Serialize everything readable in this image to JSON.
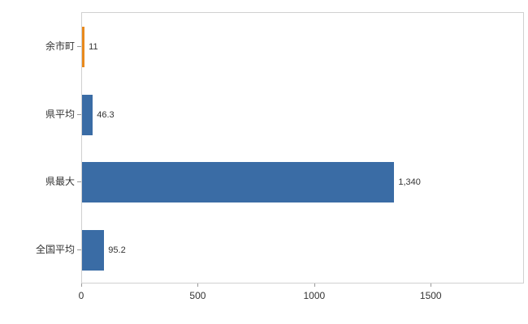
{
  "chart_data": {
    "type": "bar",
    "orientation": "horizontal",
    "title": "",
    "xlabel": "",
    "ylabel": "",
    "categories": [
      "余市町",
      "県平均",
      "県最大",
      "全国平均"
    ],
    "values": [
      11,
      46.3,
      1340,
      95.2
    ],
    "value_labels": [
      "11",
      "46.3",
      "1,340",
      "95.2"
    ],
    "bar_colors": [
      "#e8891d",
      "#3a6ca5",
      "#3a6ca5",
      "#3a6ca5"
    ],
    "xlim": [
      0,
      1900
    ],
    "xticks": [
      0,
      500,
      1000,
      1500
    ],
    "xtick_labels": [
      "0",
      "500",
      "1000",
      "1500"
    ],
    "grid": false,
    "legend": false
  },
  "colors": {
    "background": "#ffffff",
    "plot_border": "#d0d0d0",
    "axis_tick": "#999999",
    "text": "#333333",
    "bar_default": "#3a6ca5",
    "bar_highlight": "#e8891d"
  }
}
